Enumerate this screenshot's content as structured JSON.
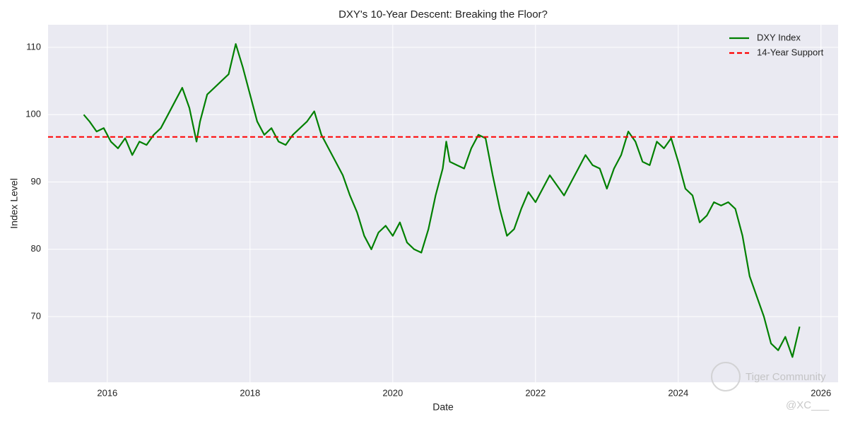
{
  "chart_data": {
    "type": "line",
    "title": "DXY's 10-Year Descent: Breaking the Floor?",
    "xlabel": "Date",
    "ylabel": "Index Level",
    "x": [
      2015.67,
      2015.75,
      2015.85,
      2015.95,
      2016.05,
      2016.15,
      2016.25,
      2016.35,
      2016.45,
      2016.55,
      2016.65,
      2016.75,
      2016.85,
      2016.95,
      2017.05,
      2017.15,
      2017.25,
      2017.3,
      2017.4,
      2017.5,
      2017.6,
      2017.7,
      2017.8,
      2017.9,
      2018.0,
      2018.1,
      2018.2,
      2018.3,
      2018.4,
      2018.5,
      2018.6,
      2018.7,
      2018.8,
      2018.9,
      2019.0,
      2019.1,
      2019.2,
      2019.3,
      2019.4,
      2019.5,
      2019.6,
      2019.7,
      2019.8,
      2019.9,
      2020.0,
      2020.1,
      2020.2,
      2020.3,
      2020.4,
      2020.5,
      2020.6,
      2020.7,
      2020.75,
      2020.8,
      2020.9,
      2021.0,
      2021.1,
      2021.2,
      2021.3,
      2021.4,
      2021.5,
      2021.6,
      2021.7,
      2021.8,
      2021.9,
      2022.0,
      2022.1,
      2022.2,
      2022.3,
      2022.4,
      2022.5,
      2022.6,
      2022.7,
      2022.8,
      2022.9,
      2023.0,
      2023.1,
      2023.2,
      2023.3,
      2023.4,
      2023.5,
      2023.6,
      2023.7,
      2023.8,
      2023.9,
      2024.0,
      2024.1,
      2024.2,
      2024.3,
      2024.4,
      2024.5,
      2024.6,
      2024.7,
      2024.8,
      2024.9,
      2025.0,
      2025.1,
      2025.2,
      2025.3,
      2025.4,
      2025.5,
      2025.6,
      2025.7
    ],
    "series": [
      {
        "name": "DXY Index",
        "color": "#008000",
        "values": [
          100,
          99,
          97.5,
          98,
          96,
          95,
          96.5,
          94,
          96,
          95.5,
          97,
          98,
          100,
          102,
          104,
          101,
          96,
          99,
          103,
          104,
          105,
          106,
          110.5,
          107,
          103,
          99,
          97,
          98,
          96,
          95.5,
          97,
          98,
          99,
          100.5,
          97,
          95,
          93,
          91,
          88,
          85.5,
          82,
          80,
          82.5,
          83.5,
          82,
          84,
          81,
          80,
          79.5,
          83,
          88,
          92,
          96,
          93,
          92.5,
          92,
          95,
          97,
          96.5,
          91,
          86,
          82,
          83,
          86,
          88.5,
          87,
          89,
          91,
          89.5,
          88,
          90,
          92,
          94,
          92.5,
          92,
          89,
          92,
          94,
          97.5,
          96,
          93,
          92.5,
          96,
          95,
          96.5,
          93,
          89,
          88,
          84,
          85,
          87,
          86.5,
          87,
          86,
          82,
          76,
          73,
          70,
          66,
          65,
          67,
          64,
          68.5
        ]
      }
    ],
    "hline": {
      "name": "14-Year Support",
      "value": 96.7,
      "color": "#ff0000"
    },
    "xlim": [
      2015.17,
      2026.24
    ],
    "xticks": [
      2016,
      2018,
      2020,
      2022,
      2024,
      2026
    ],
    "ylim": [
      60.24,
      113.36
    ],
    "yticks": [
      70,
      80,
      90,
      100,
      110
    ],
    "grid": true,
    "legend": "upper right",
    "annotations": [
      "Tiger Community",
      "@XC___"
    ]
  }
}
